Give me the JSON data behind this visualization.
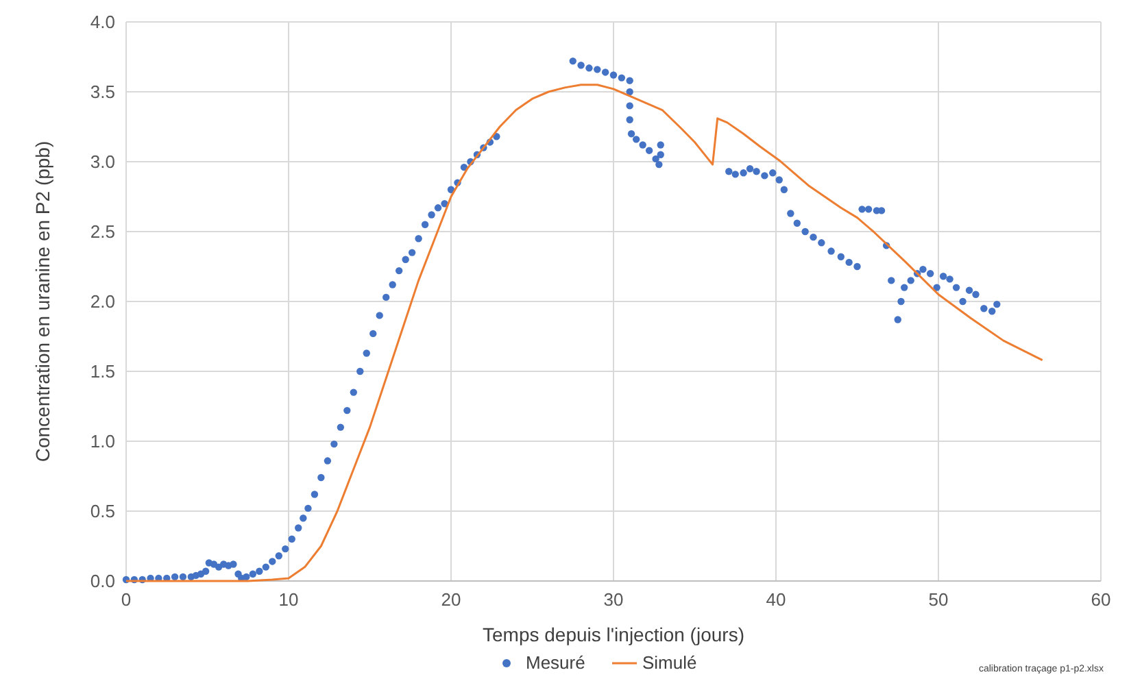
{
  "chart_data": {
    "type": "scatter",
    "xlabel": "Temps depuis l'injection (jours)",
    "ylabel": "Concentration en uranine en P2 (ppb)",
    "xlim": [
      0,
      60
    ],
    "ylim": [
      0,
      4
    ],
    "xticks": [
      0,
      10,
      20,
      30,
      40,
      50,
      60
    ],
    "yticks": [
      {
        "value": 0,
        "label": "0.0"
      },
      {
        "value": 0.5,
        "label": "0.5"
      },
      {
        "value": 1,
        "label": "1.0"
      },
      {
        "value": 1.5,
        "label": "1.5"
      },
      {
        "value": 2,
        "label": "2.0"
      },
      {
        "value": 2.5,
        "label": "2.5"
      },
      {
        "value": 3,
        "label": "3.0"
      },
      {
        "value": 3.5,
        "label": "3.5"
      },
      {
        "value": 4,
        "label": "4.0"
      }
    ],
    "grid": true,
    "legend": "bottom",
    "annotations": [
      "calibration traçage p1-p2.xlsx"
    ],
    "series": [
      {
        "name": "Mesuré",
        "marker": "circle",
        "color": "#4472c4",
        "x": [
          0,
          0.5,
          1,
          1.5,
          2,
          2.5,
          3,
          3.5,
          4,
          4.3,
          4.6,
          4.9,
          5.1,
          5.4,
          5.7,
          6,
          6.3,
          6.6,
          6.9,
          7.1,
          7.4,
          7.8,
          8.2,
          8.6,
          9,
          9.4,
          9.8,
          10.2,
          10.6,
          10.9,
          11.2,
          11.6,
          12,
          12.4,
          12.8,
          13.2,
          13.6,
          14,
          14.4,
          14.8,
          15.2,
          15.6,
          16,
          16.4,
          16.8,
          17.2,
          17.6,
          18,
          18.4,
          18.8,
          19.2,
          19.6,
          20,
          20.4,
          20.8,
          21.2,
          21.6,
          22,
          22.4,
          22.8,
          27.5,
          28,
          28.5,
          29,
          29.5,
          30,
          30.5,
          31,
          31,
          31,
          31,
          31.1,
          31.4,
          31.8,
          32.2,
          32.6,
          32.8,
          32.9,
          32.9,
          37.1,
          37.5,
          38,
          38.4,
          38.8,
          39.3,
          39.8,
          40.2,
          40.5,
          40.9,
          41.3,
          41.8,
          42.3,
          42.8,
          43.4,
          44,
          44.5,
          45,
          45.3,
          45.7,
          46.2,
          46.5,
          46.8,
          47.1,
          47.5,
          47.7,
          47.9,
          48.3,
          48.7,
          49.05,
          49.5,
          49.9,
          50.3,
          50.7,
          51.1,
          51.5,
          51.9,
          52.3,
          52.8,
          53.3,
          53.6
        ],
        "values": [
          0.01,
          0.01,
          0.01,
          0.02,
          0.02,
          0.02,
          0.03,
          0.03,
          0.03,
          0.04,
          0.05,
          0.07,
          0.13,
          0.12,
          0.1,
          0.12,
          0.11,
          0.12,
          0.05,
          0.02,
          0.03,
          0.05,
          0.07,
          0.1,
          0.14,
          0.18,
          0.23,
          0.3,
          0.38,
          0.45,
          0.52,
          0.62,
          0.74,
          0.86,
          0.98,
          1.1,
          1.22,
          1.35,
          1.5,
          1.63,
          1.77,
          1.9,
          2.03,
          2.12,
          2.22,
          2.3,
          2.35,
          2.45,
          2.55,
          2.62,
          2.67,
          2.7,
          2.8,
          2.85,
          2.96,
          3.0,
          3.05,
          3.1,
          3.14,
          3.18,
          3.72,
          3.69,
          3.67,
          3.66,
          3.64,
          3.62,
          3.6,
          3.58,
          3.5,
          3.4,
          3.3,
          3.2,
          3.16,
          3.12,
          3.08,
          3.02,
          2.98,
          3.05,
          3.12,
          2.93,
          2.91,
          2.92,
          2.95,
          2.93,
          2.9,
          2.92,
          2.87,
          2.8,
          2.63,
          2.56,
          2.5,
          2.46,
          2.42,
          2.36,
          2.32,
          2.28,
          2.25,
          2.66,
          2.66,
          2.65,
          2.65,
          2.4,
          2.15,
          1.87,
          2.0,
          2.1,
          2.15,
          2.2,
          2.23,
          2.2,
          2.1,
          2.18,
          2.16,
          2.1,
          2.0,
          2.08,
          2.05,
          1.95,
          1.93,
          1.98
        ]
      },
      {
        "name": "Simulé",
        "type": "line",
        "marker": "none",
        "color": "#ed7d31",
        "x": [
          0,
          7.5,
          9,
          10,
          11,
          12,
          13,
          14,
          15,
          16,
          17,
          18,
          19,
          20,
          21,
          22,
          23,
          24,
          25,
          26,
          27,
          28,
          29,
          30,
          31,
          32,
          33,
          34.15,
          35,
          36.1,
          36.4,
          37,
          38,
          39,
          40.2,
          42,
          44,
          45,
          46,
          48,
          50,
          52,
          54,
          56.4
        ],
        "values": [
          0,
          0,
          0.01,
          0.02,
          0.1,
          0.25,
          0.5,
          0.8,
          1.1,
          1.45,
          1.8,
          2.15,
          2.45,
          2.75,
          2.95,
          3.1,
          3.25,
          3.37,
          3.45,
          3.5,
          3.53,
          3.55,
          3.55,
          3.52,
          3.47,
          3.42,
          3.37,
          3.24,
          3.14,
          2.98,
          3.31,
          3.28,
          3.2,
          3.11,
          3.01,
          2.83,
          2.67,
          2.6,
          2.5,
          2.28,
          2.05,
          1.88,
          1.72,
          1.58
        ]
      }
    ]
  }
}
